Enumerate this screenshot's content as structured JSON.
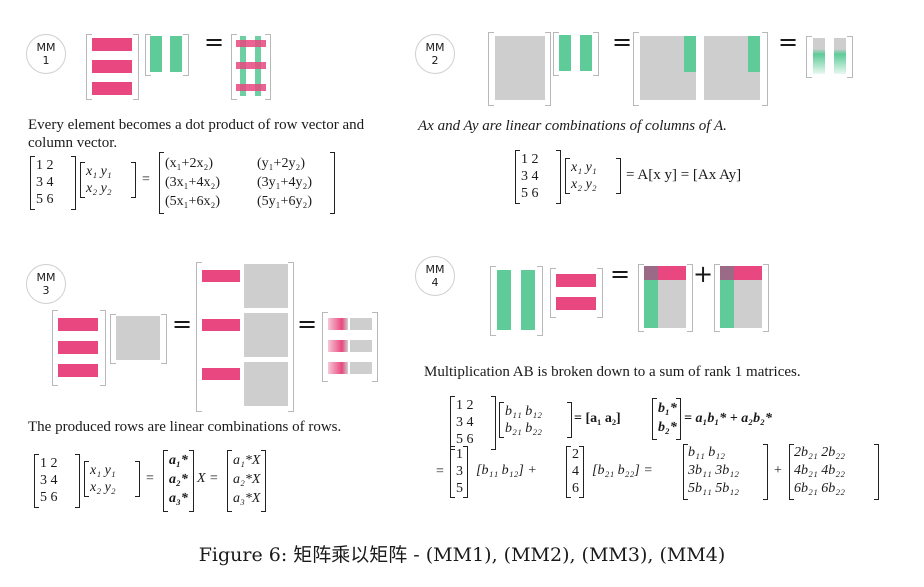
{
  "panels": {
    "mm1": {
      "badge": {
        "line1": "MM",
        "line2": "1"
      },
      "description": "Every element becomes a dot product of row vector and column vector.",
      "eq_sign": "=",
      "left_matrix": [
        "1  2",
        "3  4",
        "5  6"
      ],
      "mid_matrix": [
        "x₁   y₁",
        "x₂   y₂"
      ],
      "result_col1": [
        "(x₁+2x₂)",
        "(3x₁+4x₂)",
        "(5x₁+6x₂)"
      ],
      "result_col2": [
        "(y₁+2y₂)",
        "(3y₁+4y₂)",
        "(5y₁+6y₂)"
      ]
    },
    "mm2": {
      "badge": {
        "line1": "MM",
        "line2": "2"
      },
      "description": "Ax and Ay  are linear combinations of columns of A.",
      "left_matrix": [
        "1  2",
        "3  4",
        "5  6"
      ],
      "mid_matrix": [
        "x₁   y₁",
        "x₂   y₂"
      ],
      "rhs": "= A[x   y] = [Ax   Ay]"
    },
    "mm3": {
      "badge": {
        "line1": "MM",
        "line2": "3"
      },
      "description": "The produced rows are linear combinations of rows.",
      "left_matrix": [
        "1  2",
        "3  4",
        "5  6"
      ],
      "mid_matrix": [
        "x₁   y₁",
        "x₂   y₂"
      ],
      "rows_a": [
        "a₁*",
        "a₂*",
        "a₃*"
      ],
      "x_label": "X =",
      "rows_ax": [
        "a₁*X",
        "a₂*X",
        "a₃*X"
      ]
    },
    "mm4": {
      "badge": {
        "line1": "MM",
        "line2": "4"
      },
      "description": "Multiplication AB is broken down to a sum of rank 1 matrices.",
      "left_matrix": [
        "1  2",
        "3  4",
        "5  6"
      ],
      "b_matrix": [
        "b₁₁   b₁₂",
        "b₂₁   b₂₂"
      ],
      "eq1": "= [a₁   a₂]",
      "b_rows": [
        "b₁*",
        "b₂*"
      ],
      "eq1_tail": "= a₁b₁* + a₂b₂*",
      "col1": [
        "1",
        "3",
        "5"
      ],
      "row1": "[b₁₁   b₁₂] +",
      "col2": [
        "2",
        "4",
        "6"
      ],
      "row2": "[b₂₁   b₂₂] =",
      "res1": [
        "b₁₁   b₁₂",
        "3b₁₁  3b₁₂",
        "5b₁₁  5b₁₂"
      ],
      "plus": "+",
      "res2": [
        "2b₂₁  2b₂₂",
        "4b₂₁  4b₂₂",
        "6b₂₁  6b₂₂"
      ],
      "lead_eq": "="
    }
  },
  "caption": "Figure 6: 矩阵乘以矩阵 - (MM1), (MM2), (MM3), (MM4)",
  "colors": {
    "row_pink": "#e8487f",
    "col_green": "#5ecb98",
    "block_gray": "#cfcecf"
  }
}
